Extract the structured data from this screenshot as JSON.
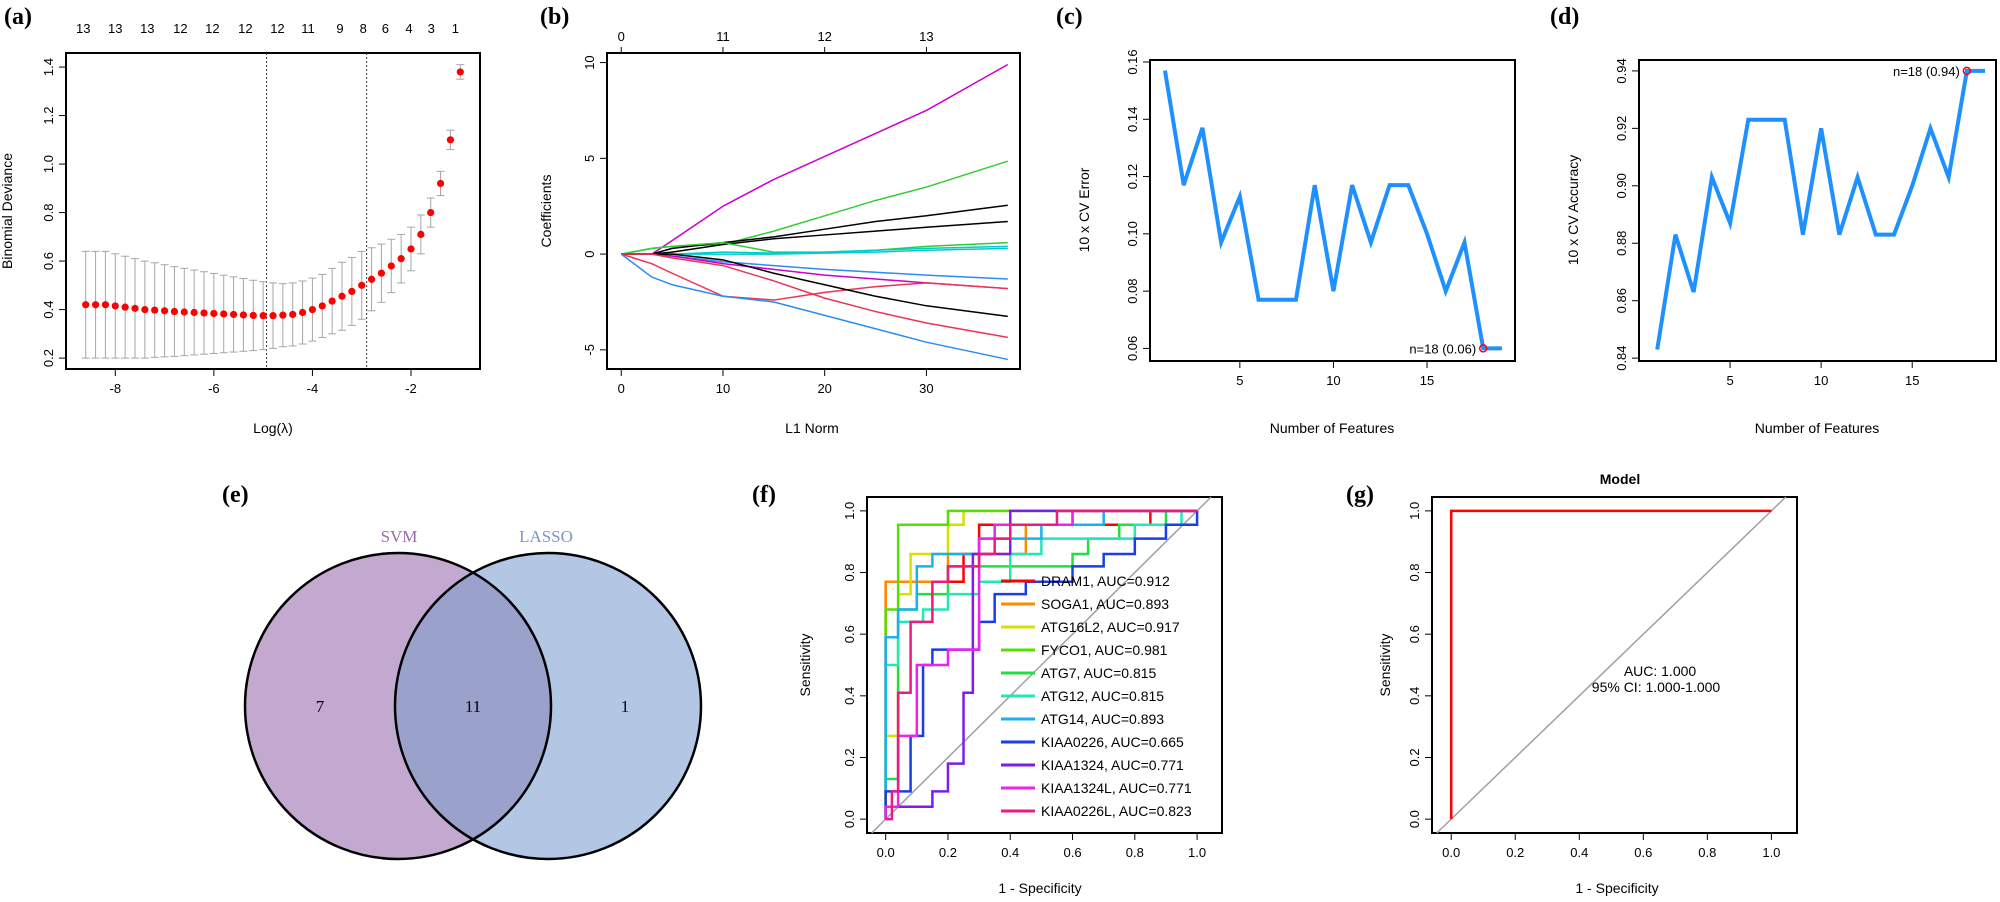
{
  "panels": {
    "a": "(a)",
    "b": "(b)",
    "c": "(c)",
    "d": "(d)",
    "e": "(e)",
    "f": "(f)",
    "g": "(g)"
  },
  "chart_data": [
    {
      "panel": "(a)",
      "type": "scatter",
      "xlabel": "Log(λ)",
      "ylabel": "Binomial Deviance",
      "xlim": [
        -9.0,
        -0.6
      ],
      "ylim": [
        0.155,
        1.458
      ],
      "xticks": [
        -8,
        -6,
        -4,
        -2
      ],
      "yticks": [
        0.2,
        0.4,
        0.6,
        0.8,
        1.0,
        1.2,
        1.4
      ],
      "top_axis": {
        "labels": [
          "13",
          "13",
          "13",
          "12",
          "12",
          "12",
          "12",
          "11",
          "9",
          "8",
          "6",
          "4",
          "3",
          "1"
        ],
        "at": [
          -8.65,
          -8.0,
          -7.35,
          -6.68,
          -6.03,
          -5.36,
          -4.71,
          -4.09,
          -3.44,
          -2.97,
          -2.52,
          -2.04,
          -1.59,
          -1.1
        ]
      },
      "vlines": [
        -4.93,
        -2.9
      ],
      "point_color": "#ff0000",
      "errorbar_color": "#a6a6a6",
      "x": [
        -8.6,
        -8.4,
        -8.2,
        -8.0,
        -7.8,
        -7.6,
        -7.4,
        -7.2,
        -7.0,
        -6.8,
        -6.6,
        -6.4,
        -6.2,
        -6.0,
        -5.8,
        -5.6,
        -5.4,
        -5.2,
        -5.0,
        -4.8,
        -4.6,
        -4.4,
        -4.2,
        -4.0,
        -3.8,
        -3.6,
        -3.4,
        -3.2,
        -3.0,
        -2.8,
        -2.6,
        -2.4,
        -2.2,
        -2.0,
        -1.8,
        -1.6,
        -1.4,
        -1.2,
        -1.0
      ],
      "y": [
        0.42,
        0.42,
        0.42,
        0.415,
        0.41,
        0.405,
        0.4,
        0.398,
        0.395,
        0.392,
        0.39,
        0.388,
        0.386,
        0.384,
        0.382,
        0.38,
        0.378,
        0.376,
        0.375,
        0.375,
        0.377,
        0.38,
        0.388,
        0.4,
        0.415,
        0.435,
        0.455,
        0.475,
        0.5,
        0.525,
        0.55,
        0.58,
        0.61,
        0.65,
        0.71,
        0.8,
        0.92,
        1.1,
        1.38
      ],
      "error": [
        0.22,
        0.22,
        0.22,
        0.215,
        0.21,
        0.205,
        0.2,
        0.195,
        0.19,
        0.185,
        0.18,
        0.175,
        0.17,
        0.165,
        0.16,
        0.155,
        0.15,
        0.145,
        0.14,
        0.135,
        0.13,
        0.13,
        0.13,
        0.13,
        0.13,
        0.135,
        0.14,
        0.14,
        0.14,
        0.13,
        0.12,
        0.11,
        0.1,
        0.09,
        0.08,
        0.06,
        0.05,
        0.04,
        0.03
      ]
    },
    {
      "panel": "(b)",
      "type": "line",
      "xlabel": "L1 Norm",
      "ylabel": "Coefficients",
      "xlim": [
        -1.4,
        39.2
      ],
      "ylim": [
        -6.0,
        10.5
      ],
      "xticks": [
        0,
        10,
        20,
        30
      ],
      "yticks": [
        -5,
        0,
        5,
        10
      ],
      "top_axis": {
        "labels": [
          "0",
          "11",
          "12",
          "13"
        ],
        "at": [
          0,
          10,
          20,
          30
        ]
      },
      "x": [
        0,
        3,
        5,
        10,
        15,
        20,
        25,
        30,
        38
      ],
      "series": [
        {
          "color": "#cc00cc",
          "values": [
            0,
            0,
            0.7,
            2.5,
            3.9,
            5.1,
            6.3,
            7.5,
            9.9
          ]
        },
        {
          "color": "#33cc33",
          "values": [
            0,
            0.3,
            0.4,
            0.5,
            1.2,
            2.0,
            2.8,
            3.5,
            4.85
          ]
        },
        {
          "color": "#000000",
          "values": [
            0,
            0,
            0.3,
            0.6,
            0.9,
            1.3,
            1.7,
            2.0,
            2.55
          ]
        },
        {
          "color": "#000000",
          "values": [
            0,
            0,
            0.1,
            0.5,
            0.8,
            1.0,
            1.2,
            1.4,
            1.7
          ]
        },
        {
          "color": "#33cc33",
          "values": [
            0,
            0.3,
            0.4,
            0.6,
            0.1,
            0.1,
            0.2,
            0.4,
            0.6
          ]
        },
        {
          "color": "#00cccc",
          "values": [
            0,
            0,
            0,
            0.1,
            0.05,
            0.1,
            0.2,
            0.3,
            0.4
          ]
        },
        {
          "color": "#00cccc",
          "values": [
            0,
            0,
            0,
            0,
            0,
            0.05,
            0.1,
            0.2,
            0.3
          ]
        },
        {
          "color": "#2c8cf0",
          "values": [
            0,
            0,
            -0.1,
            -0.4,
            -0.6,
            -0.8,
            -0.95,
            -1.1,
            -1.3
          ]
        },
        {
          "color": "#cc00cc",
          "values": [
            0,
            0,
            -0.1,
            -0.5,
            -0.8,
            -1.1,
            -1.3,
            -1.5,
            -1.8
          ]
        },
        {
          "color": "#ee3355",
          "values": [
            0,
            -0.5,
            -1.0,
            -2.2,
            -2.4,
            -2.0,
            -1.7,
            -1.5,
            -1.8
          ]
        },
        {
          "color": "#000000",
          "values": [
            0,
            0,
            0,
            -0.3,
            -1.0,
            -1.6,
            -2.2,
            -2.7,
            -3.25
          ]
        },
        {
          "color": "#ee3355",
          "values": [
            0,
            0,
            -0.2,
            -0.6,
            -1.4,
            -2.3,
            -3.0,
            -3.6,
            -4.35
          ]
        },
        {
          "color": "#2c8cf0",
          "values": [
            0,
            -1.2,
            -1.6,
            -2.2,
            -2.5,
            -3.2,
            -3.9,
            -4.6,
            -5.5
          ]
        }
      ]
    },
    {
      "panel": "(c)",
      "type": "line",
      "xlabel": "Number of Features",
      "ylabel": "10 x CV Error",
      "xlim": [
        0.2,
        19.7
      ],
      "ylim": [
        0.0556,
        0.1607
      ],
      "xticks": [
        5,
        10,
        15
      ],
      "yticks": [
        0.06,
        0.08,
        0.1,
        0.12,
        0.14,
        0.16
      ],
      "line_color": "#1e90ff",
      "x": [
        1,
        2,
        3,
        4,
        5,
        6,
        7,
        8,
        9,
        10,
        11,
        12,
        13,
        14,
        15,
        16,
        17,
        18,
        19
      ],
      "y": [
        0.157,
        0.117,
        0.137,
        0.097,
        0.113,
        0.077,
        0.077,
        0.077,
        0.117,
        0.08,
        0.117,
        0.097,
        0.117,
        0.117,
        0.1,
        0.08,
        0.097,
        0.06,
        0.06
      ],
      "annotation": {
        "text": "n=18 (0.06)",
        "x": 18,
        "y": 0.06,
        "color": "#ff0000"
      }
    },
    {
      "panel": "(d)",
      "type": "line",
      "xlabel": "Number of Features",
      "ylabel": "10 x CV Accuracy",
      "xlim": [
        0.0,
        19.6
      ],
      "ylim": [
        0.839,
        0.9438
      ],
      "xticks": [
        5,
        10,
        15
      ],
      "yticks": [
        0.84,
        0.86,
        0.88,
        0.9,
        0.92,
        0.94
      ],
      "line_color": "#1e90ff",
      "x": [
        1,
        2,
        3,
        4,
        5,
        6,
        7,
        8,
        9,
        10,
        11,
        12,
        13,
        14,
        15,
        16,
        17,
        18,
        19
      ],
      "y": [
        0.843,
        0.883,
        0.863,
        0.903,
        0.887,
        0.923,
        0.923,
        0.923,
        0.883,
        0.92,
        0.883,
        0.903,
        0.883,
        0.883,
        0.9,
        0.92,
        0.903,
        0.94,
        0.94
      ],
      "annotation": {
        "text": "n=18 (0.94)",
        "x": 18,
        "y": 0.94,
        "color": "#ff0000"
      }
    },
    {
      "panel": "(e)",
      "type": "venn",
      "sets": [
        {
          "name": "SVM",
          "only": "7",
          "color": "#c3a9cf",
          "label_color": "#9b6aa8"
        },
        {
          "name": "LASSO",
          "only": "1",
          "color": "#b3c6e4",
          "label_color": "#7896c8"
        }
      ],
      "intersection": "11",
      "intersection_color": "#9aa1cb"
    },
    {
      "panel": "(f)",
      "type": "line",
      "xlabel": "1 - Specificity",
      "ylabel": "Sensitivity",
      "xlim": [
        -0.06,
        1.08
      ],
      "ylim": [
        -0.045,
        1.045
      ],
      "xticks": [
        0.0,
        0.2,
        0.4,
        0.6,
        0.8,
        1.0
      ],
      "yticks": [
        0.0,
        0.2,
        0.4,
        0.6,
        0.8,
        1.0
      ],
      "tick_labels": [
        "0.0",
        "0.2",
        "0.4",
        "0.6",
        "0.8",
        "1.0"
      ],
      "legend_position": "bottom-right",
      "series": [
        {
          "name": "DRAM1, AUC=0.912",
          "color": "#ff0000",
          "points": [
            [
              0,
              0
            ],
            [
              0,
              0.77
            ],
            [
              0.25,
              0.77
            ],
            [
              0.3,
              0.86
            ],
            [
              0.35,
              0.955
            ],
            [
              0.85,
              0.955
            ],
            [
              0.85,
              1
            ],
            [
              1,
              1
            ]
          ]
        },
        {
          "name": "SOGA1, AUC=0.893",
          "color": "#ff8c00",
          "points": [
            [
              0,
              0
            ],
            [
              0,
              0.77
            ],
            [
              0.2,
              0.77
            ],
            [
              0.2,
              0.82
            ],
            [
              0.3,
              0.86
            ],
            [
              0.45,
              0.86
            ],
            [
              0.45,
              0.91
            ],
            [
              0.6,
              0.955
            ],
            [
              0.8,
              1
            ],
            [
              1,
              1
            ]
          ]
        },
        {
          "name": "ATG16L2, AUC=0.917",
          "color": "#d8e000",
          "points": [
            [
              0,
              0
            ],
            [
              0,
              0.23
            ],
            [
              0.04,
              0.27
            ],
            [
              0.08,
              0.73
            ],
            [
              0.08,
              0.86
            ],
            [
              0.2,
              0.86
            ],
            [
              0.25,
              0.955
            ],
            [
              0.3,
              1
            ],
            [
              1,
              1
            ]
          ]
        },
        {
          "name": "FYCO1, AUC=0.981",
          "color": "#55e000",
          "points": [
            [
              0,
              0
            ],
            [
              0,
              0.68
            ],
            [
              0.04,
              0.68
            ],
            [
              0.04,
              0.955
            ],
            [
              0.2,
              0.955
            ],
            [
              0.2,
              1
            ],
            [
              1,
              1
            ]
          ]
        },
        {
          "name": "ATG7, AUC=0.815",
          "color": "#22dd44",
          "points": [
            [
              0,
              0
            ],
            [
              0,
              0.13
            ],
            [
              0.04,
              0.13
            ],
            [
              0.04,
              0.6
            ],
            [
              0.1,
              0.68
            ],
            [
              0.2,
              0.73
            ],
            [
              0.3,
              0.82
            ],
            [
              0.6,
              0.82
            ],
            [
              0.65,
              0.86
            ],
            [
              0.75,
              0.91
            ],
            [
              0.9,
              0.955
            ],
            [
              1,
              1
            ]
          ]
        },
        {
          "name": "ATG12, AUC=0.815",
          "color": "#22e8b8",
          "points": [
            [
              0,
              0
            ],
            [
              0,
              0.45
            ],
            [
              0.04,
              0.5
            ],
            [
              0.12,
              0.64
            ],
            [
              0.2,
              0.68
            ],
            [
              0.3,
              0.73
            ],
            [
              0.4,
              0.77
            ],
            [
              0.5,
              0.86
            ],
            [
              0.8,
              0.91
            ],
            [
              0.95,
              0.955
            ],
            [
              1,
              1
            ]
          ]
        },
        {
          "name": "ATG14, AUC=0.893",
          "color": "#1ab0f0",
          "points": [
            [
              0,
              0
            ],
            [
              0,
              0.5
            ],
            [
              0.04,
              0.59
            ],
            [
              0.1,
              0.68
            ],
            [
              0.15,
              0.82
            ],
            [
              0.3,
              0.86
            ],
            [
              0.5,
              0.91
            ],
            [
              0.7,
              0.955
            ],
            [
              0.95,
              1
            ],
            [
              1,
              1
            ]
          ]
        },
        {
          "name": "KIAA0226, AUC=0.665",
          "color": "#1a3ee8",
          "points": [
            [
              0,
              0
            ],
            [
              0.08,
              0.09
            ],
            [
              0.12,
              0.27
            ],
            [
              0.15,
              0.5
            ],
            [
              0.3,
              0.55
            ],
            [
              0.35,
              0.64
            ],
            [
              0.45,
              0.73
            ],
            [
              0.6,
              0.77
            ],
            [
              0.7,
              0.82
            ],
            [
              0.8,
              0.86
            ],
            [
              0.9,
              0.91
            ],
            [
              1,
              0.955
            ],
            [
              1,
              1
            ]
          ]
        },
        {
          "name": "KIAA1324, AUC=0.771",
          "color": "#7a1ee8",
          "points": [
            [
              0,
              0
            ],
            [
              0.04,
              0.04
            ],
            [
              0.15,
              0.04
            ],
            [
              0.2,
              0.09
            ],
            [
              0.25,
              0.18
            ],
            [
              0.28,
              0.41
            ],
            [
              0.3,
              0.86
            ],
            [
              0.4,
              0.86
            ],
            [
              0.4,
              1
            ],
            [
              1,
              1
            ]
          ]
        },
        {
          "name": "KIAA1324L, AUC=0.771",
          "color": "#ee22ee",
          "points": [
            [
              0,
              0
            ],
            [
              0.04,
              0.04
            ],
            [
              0.1,
              0.27
            ],
            [
              0.15,
              0.5
            ],
            [
              0.2,
              0.5
            ],
            [
              0.3,
              0.55
            ],
            [
              0.35,
              0.91
            ],
            [
              0.6,
              0.955
            ],
            [
              0.7,
              1
            ],
            [
              1,
              1
            ]
          ]
        },
        {
          "name": "KIAA0226L, AUC=0.823",
          "color": "#ee1a80",
          "points": [
            [
              0,
              0
            ],
            [
              0.02,
              0
            ],
            [
              0.04,
              0.09
            ],
            [
              0.08,
              0.41
            ],
            [
              0.15,
              0.64
            ],
            [
              0.2,
              0.77
            ],
            [
              0.3,
              0.82
            ],
            [
              0.35,
              0.86
            ],
            [
              0.4,
              0.91
            ],
            [
              0.55,
              0.955
            ],
            [
              1,
              1
            ]
          ]
        }
      ]
    },
    {
      "panel": "(g)",
      "type": "line",
      "title": "Model",
      "xlabel": "1 - Specificity",
      "ylabel": "Sensitivity",
      "xlim": [
        -0.06,
        1.08
      ],
      "ylim": [
        -0.045,
        1.045
      ],
      "xticks": [
        0.0,
        0.2,
        0.4,
        0.6,
        0.8,
        1.0
      ],
      "yticks": [
        0.0,
        0.2,
        0.4,
        0.6,
        0.8,
        1.0
      ],
      "tick_labels": [
        "0.0",
        "0.2",
        "0.4",
        "0.6",
        "0.8",
        "1.0"
      ],
      "series": [
        {
          "color": "#ff0000",
          "points": [
            [
              0,
              0
            ],
            [
              0,
              1
            ],
            [
              1,
              1
            ]
          ]
        }
      ],
      "annotations": [
        "AUC: 1.000",
        "95% CI: 1.000-1.000"
      ],
      "annotation_color": "#ff0000"
    }
  ]
}
